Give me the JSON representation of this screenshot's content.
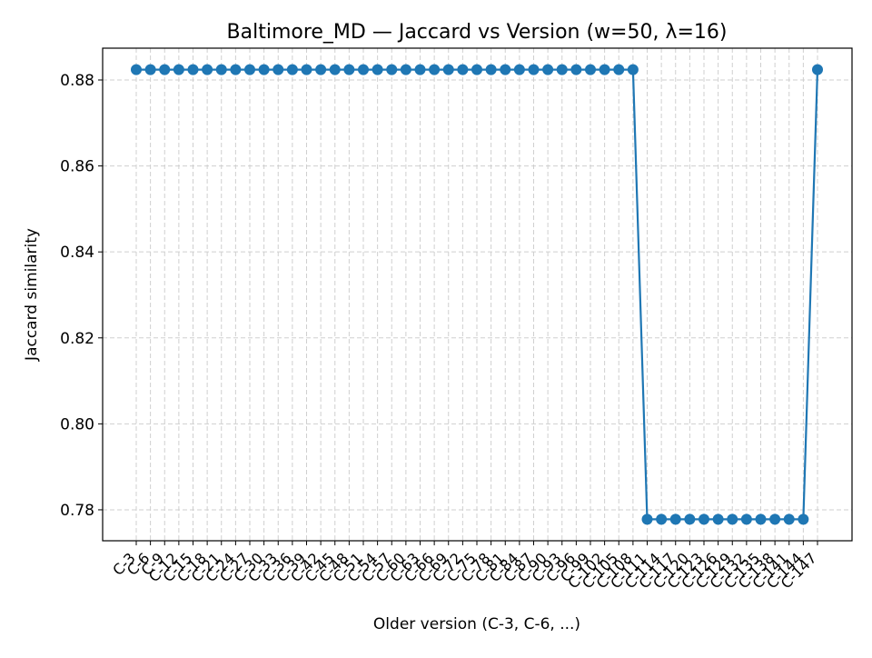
{
  "chart_data": {
    "type": "line",
    "title": "Baltimore_MD — Jaccard vs Version (w=50, λ=16)",
    "xlabel": "Older version (C-3, C-6, ...)",
    "ylabel": "Jaccard similarity",
    "categories": [
      "C-3",
      "C-6",
      "C-9",
      "C-12",
      "C-15",
      "C-18",
      "C-21",
      "C-24",
      "C-27",
      "C-30",
      "C-33",
      "C-36",
      "C-39",
      "C-42",
      "C-45",
      "C-48",
      "C-51",
      "C-54",
      "C-57",
      "C-60",
      "C-63",
      "C-66",
      "C-69",
      "C-72",
      "C-75",
      "C-78",
      "C-81",
      "C-84",
      "C-87",
      "C-90",
      "C-93",
      "C-96",
      "C-99",
      "C-102",
      "C-105",
      "C-108",
      "C-111",
      "C-114",
      "C-117",
      "C-120",
      "C-123",
      "C-126",
      "C-129",
      "C-132",
      "C-135",
      "C-138",
      "C-141",
      "C-144",
      "C-147"
    ],
    "series": [
      {
        "values": [
          0.8824,
          0.8824,
          0.8824,
          0.8824,
          0.8824,
          0.8824,
          0.8824,
          0.8824,
          0.8824,
          0.8824,
          0.8824,
          0.8824,
          0.8824,
          0.8824,
          0.8824,
          0.8824,
          0.8824,
          0.8824,
          0.8824,
          0.8824,
          0.8824,
          0.8824,
          0.8824,
          0.8824,
          0.8824,
          0.8824,
          0.8824,
          0.8824,
          0.8824,
          0.8824,
          0.8824,
          0.8824,
          0.8824,
          0.8824,
          0.8824,
          0.8824,
          0.7778,
          0.7778,
          0.7778,
          0.7778,
          0.7778,
          0.7778,
          0.7778,
          0.7778,
          0.7778,
          0.7778,
          0.7778,
          0.7778,
          0.8824
        ]
      }
    ],
    "ylim": [
      0.7728,
      0.8874
    ],
    "yticks": [
      "0.78",
      "0.80",
      "0.82",
      "0.84",
      "0.86",
      "0.88"
    ],
    "grid": true,
    "color": "#1f77b4"
  }
}
